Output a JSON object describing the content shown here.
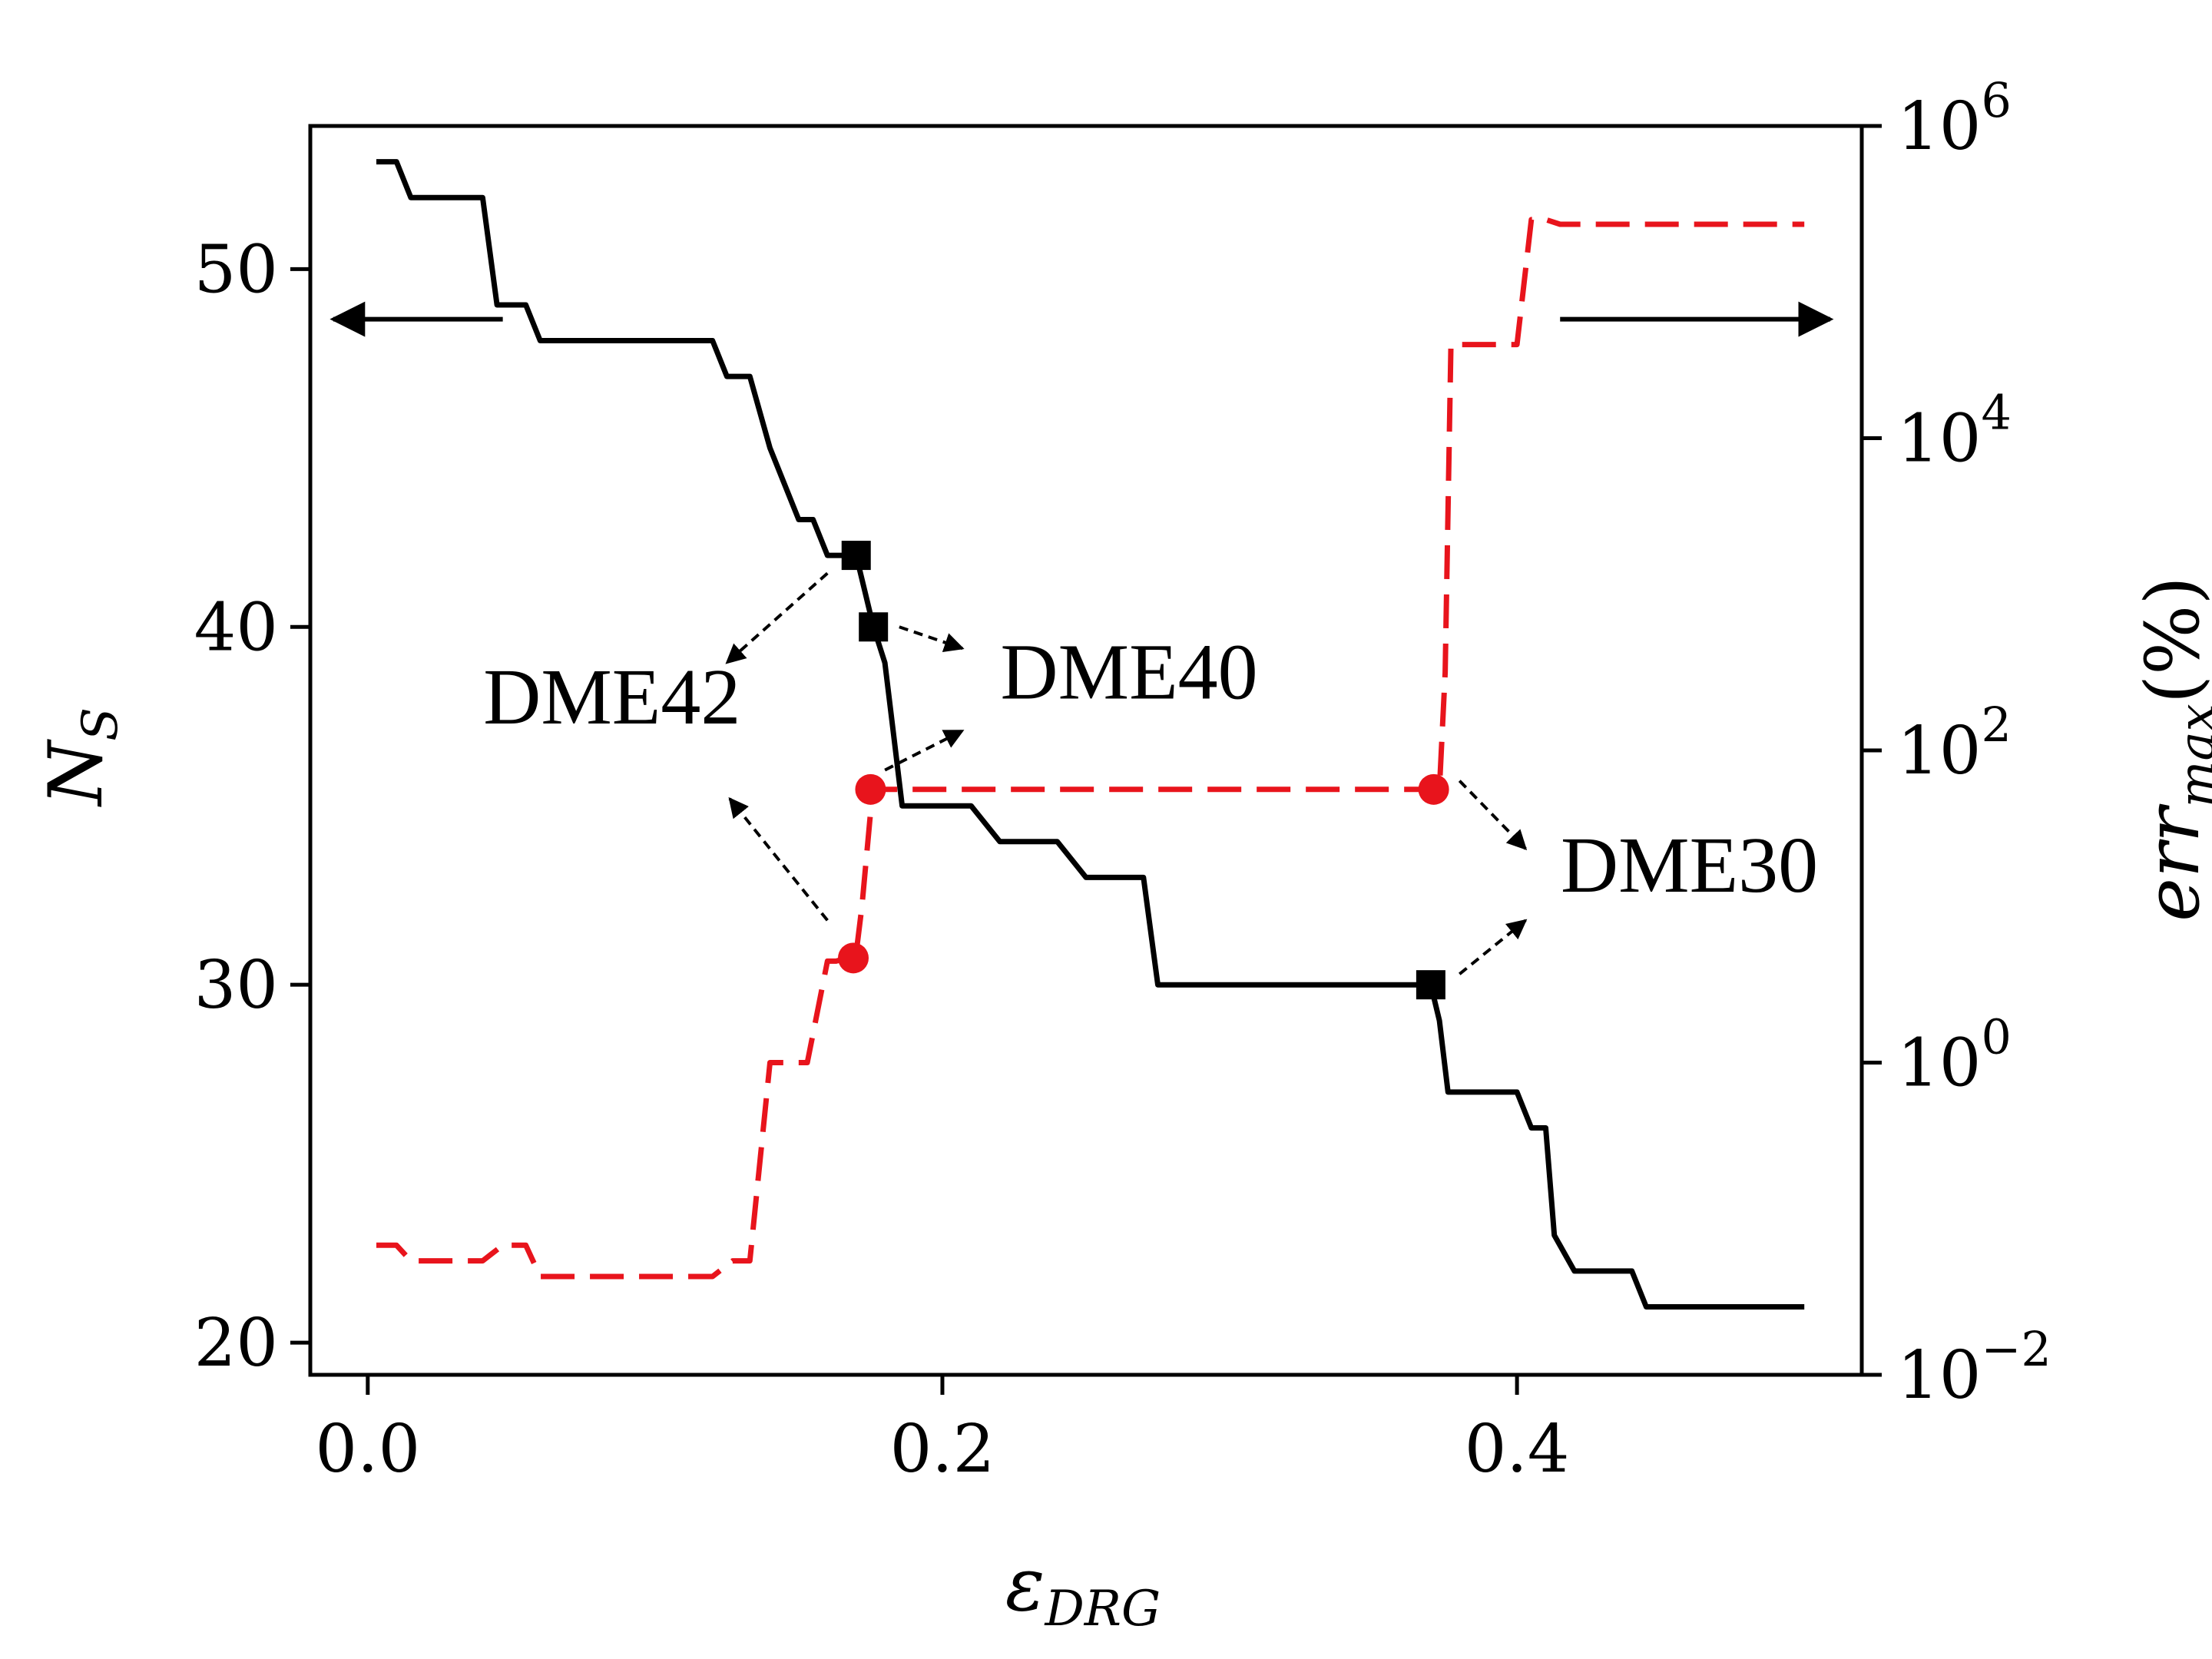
{
  "chart_data": {
    "type": "line",
    "xlabel": "ε",
    "xlabel_sub": "DRG",
    "ylabel_left": "N",
    "ylabel_left_sub": "S",
    "ylabel_right": "err",
    "ylabel_right_sub": "max",
    "ylabel_right_suffix": "(%)",
    "xlim": [
      -0.02,
      0.52
    ],
    "ylim_left": [
      19.1,
      54.0
    ],
    "ylim_right_log10": [
      -2,
      6
    ],
    "right_scale": "log",
    "x_ticks": [
      0.0,
      0.2,
      0.4
    ],
    "x_tick_labels": [
      "0.0",
      "0.2",
      "0.4"
    ],
    "left_ticks": [
      20,
      30,
      40,
      50
    ],
    "left_tick_labels": [
      "20",
      "30",
      "40",
      "50"
    ],
    "right_ticks": [
      -2,
      0,
      2,
      4,
      6
    ],
    "right_tick_base": "10",
    "right_tick_exponents": [
      "−2",
      "0",
      "2",
      "4",
      "6"
    ],
    "series": [
      {
        "axis": "left",
        "color": "#000000",
        "style": "solid",
        "points": [
          [
            0.003,
            53
          ],
          [
            0.01,
            53
          ],
          [
            0.015,
            52
          ],
          [
            0.04,
            52
          ],
          [
            0.045,
            49
          ],
          [
            0.055,
            49
          ],
          [
            0.06,
            48
          ],
          [
            0.12,
            48
          ],
          [
            0.125,
            47
          ],
          [
            0.133,
            47
          ],
          [
            0.14,
            45
          ],
          [
            0.15,
            43
          ],
          [
            0.155,
            43
          ],
          [
            0.16,
            42
          ],
          [
            0.17,
            42
          ],
          [
            0.173,
            41
          ],
          [
            0.176,
            40
          ],
          [
            0.18,
            39
          ],
          [
            0.183,
            37
          ],
          [
            0.186,
            35
          ],
          [
            0.21,
            35
          ],
          [
            0.22,
            34
          ],
          [
            0.24,
            34
          ],
          [
            0.25,
            33
          ],
          [
            0.27,
            33
          ],
          [
            0.275,
            30
          ],
          [
            0.37,
            30
          ],
          [
            0.373,
            29
          ],
          [
            0.376,
            27
          ],
          [
            0.4,
            27
          ],
          [
            0.405,
            26
          ],
          [
            0.41,
            26
          ],
          [
            0.413,
            23
          ],
          [
            0.42,
            22
          ],
          [
            0.44,
            22
          ],
          [
            0.445,
            21
          ],
          [
            0.5,
            21
          ]
        ]
      },
      {
        "axis": "right",
        "color": "#e8141c",
        "style": "dashed",
        "points_log10": [
          [
            0.003,
            -1.17
          ],
          [
            0.01,
            -1.17
          ],
          [
            0.015,
            -1.27
          ],
          [
            0.04,
            -1.27
          ],
          [
            0.047,
            -1.17
          ],
          [
            0.055,
            -1.17
          ],
          [
            0.06,
            -1.37
          ],
          [
            0.12,
            -1.37
          ],
          [
            0.127,
            -1.27
          ],
          [
            0.133,
            -1.27
          ],
          [
            0.14,
            0.0
          ],
          [
            0.15,
            0.0
          ],
          [
            0.153,
            0.0
          ],
          [
            0.16,
            0.65
          ],
          [
            0.163,
            0.65
          ],
          [
            0.167,
            0.67
          ],
          [
            0.17,
            0.7
          ],
          [
            0.172,
            1.0
          ],
          [
            0.175,
            1.6
          ],
          [
            0.177,
            1.75
          ],
          [
            0.373,
            1.75
          ],
          [
            0.375,
            2.5
          ],
          [
            0.377,
            4.6
          ],
          [
            0.4,
            4.6
          ],
          [
            0.405,
            5.4
          ],
          [
            0.41,
            5.4
          ],
          [
            0.415,
            5.37
          ],
          [
            0.5,
            5.37
          ]
        ]
      }
    ],
    "markers": [
      {
        "name": "dme42-square",
        "shape": "square",
        "axis": "left",
        "x": 0.17,
        "y": 42
      },
      {
        "name": "dme40-square",
        "shape": "square",
        "axis": "left",
        "x": 0.176,
        "y": 40
      },
      {
        "name": "dme30-square",
        "shape": "square",
        "axis": "left",
        "x": 0.37,
        "y": 30
      },
      {
        "name": "dme42-circle",
        "shape": "circle",
        "axis": "right",
        "x": 0.169,
        "y_log10": 0.67
      },
      {
        "name": "dme40-circle",
        "shape": "circle",
        "axis": "right",
        "x": 0.175,
        "y_log10": 1.75
      },
      {
        "name": "dme30-circle",
        "shape": "circle",
        "axis": "right",
        "x": 0.371,
        "y_log10": 1.75
      }
    ],
    "annotations": [
      {
        "name": "dme42-label",
        "text": "DME42",
        "x": 0.085,
        "y": 37.3,
        "anchor": "middle"
      },
      {
        "name": "dme40-label",
        "text": "DME40",
        "x": 0.265,
        "y": 38.0,
        "anchor": "middle"
      },
      {
        "name": "dme30-label",
        "text": "DME30",
        "x": 0.46,
        "y": 32.6,
        "anchor": "middle"
      }
    ],
    "annotation_arrows": [
      {
        "name": "arrow-dme42-upper",
        "from": [
          0.16,
          41.5
        ],
        "to": [
          0.125,
          39.0
        ]
      },
      {
        "name": "arrow-dme42-lower",
        "from": [
          0.16,
          31.8
        ],
        "to": [
          0.126,
          35.2
        ]
      },
      {
        "name": "arrow-dme40-upper",
        "from": [
          0.185,
          40.0
        ],
        "to": [
          0.207,
          39.4
        ]
      },
      {
        "name": "arrow-dme40-lower",
        "from": [
          0.18,
          36.0
        ],
        "to": [
          0.207,
          37.1
        ]
      },
      {
        "name": "arrow-dme30-upper",
        "from": [
          0.38,
          35.7
        ],
        "to": [
          0.403,
          33.8
        ]
      },
      {
        "name": "arrow-dme30-lower",
        "from": [
          0.38,
          30.3
        ],
        "to": [
          0.403,
          31.8
        ]
      }
    ],
    "axis_arrows": [
      {
        "name": "left-axis-arrow",
        "points_to": "left",
        "from": [
          0.047,
          48.6
        ],
        "to": [
          -0.012,
          48.6
        ]
      },
      {
        "name": "right-axis-arrow",
        "points_to": "right",
        "from": [
          0.415,
          48.6
        ],
        "to": [
          0.509,
          48.6
        ]
      }
    ],
    "grid": false,
    "legend": "none"
  }
}
